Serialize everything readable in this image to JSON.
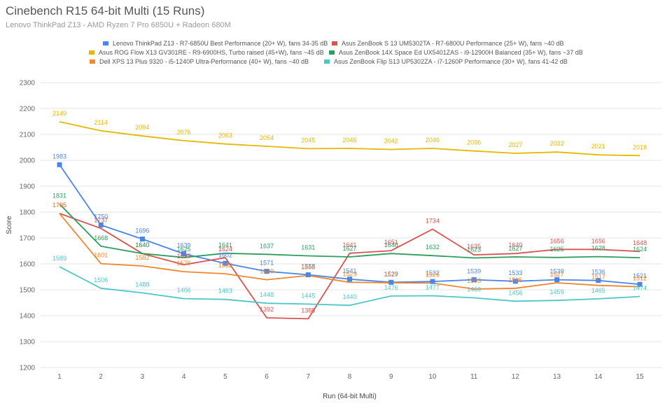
{
  "title": "Cinebench R15 64-bit Multi (15 Runs)",
  "subtitle": "Lenovo ThinkPad Z13 - AMD Ryzen 7 Pro 6850U  + Radeon 680M",
  "chart_data": {
    "type": "line",
    "title": "Cinebench R15 64-bit Multi (15 Runs)",
    "subtitle": "Lenovo ThinkPad Z13 - AMD Ryzen 7 Pro 6850U  + Radeon 680M",
    "xlabel": "Run (64-bit Multi)",
    "ylabel": "Score",
    "x": [
      1,
      2,
      3,
      4,
      5,
      6,
      7,
      8,
      9,
      10,
      11,
      12,
      13,
      14,
      15
    ],
    "ylim": [
      1200,
      2300
    ],
    "yticks": [
      1200,
      1300,
      1400,
      1500,
      1600,
      1700,
      1800,
      1900,
      2000,
      2100,
      2200,
      2300
    ],
    "grid": true,
    "legend_position": "top",
    "series": [
      {
        "name": "Lenovo ThinkPad Z13 - R7-6850U Best Performance (20+ W), fans 34-35 dB",
        "color": "#4a86e8",
        "marker": "square",
        "values": [
          1983,
          1750,
          1696,
          1639,
          1602,
          1571,
          1558,
          1541,
          1529,
          1532,
          1539,
          1533,
          1539,
          1536,
          1521
        ]
      },
      {
        "name": "Asus ZenBook S 13 UM5302TA - R7-6800U Performance (25+ W), fans ~40 dB",
        "color": "#d9534f",
        "marker": "none",
        "values": [
          1795,
          1737,
          1640,
          1597,
          1624,
          1392,
          1388,
          1641,
          1651,
          1734,
          1635,
          1640,
          1656,
          1656,
          1648
        ]
      },
      {
        "name": "Asus ROG Flow X13 GV301RE - R9-6900HS, Turbo raised (45+W), fans ~45 dB",
        "color": "#e6b800",
        "marker": "none",
        "values": [
          2149,
          2114,
          2094,
          2076,
          2063,
          2054,
          2045,
          2046,
          2042,
          2046,
          2036,
          2027,
          2032,
          2021,
          2018
        ]
      },
      {
        "name": "Asus ZenBook 14X Space Ed UX5401ZAS - i9-12900H Balanced (35+ W), fans ~37 dB",
        "color": "#2e9e5e",
        "marker": "none",
        "values": [
          1831,
          1668,
          1640,
          1625,
          1641,
          1637,
          1631,
          1627,
          1640,
          1632,
          1623,
          1627,
          1625,
          1628,
          1624
        ]
      },
      {
        "name": "Dell XPS 13 Plus 9320 - i5-1240P Ultra-Performance (40+ W), fans ~40 dB",
        "color": "#f0862e",
        "marker": "none",
        "values": [
          1795,
          1601,
          1592,
          1570,
          1562,
          1539,
          1555,
          1529,
          1527,
          1526,
          1503,
          1506,
          1527,
          1517,
          1512
        ]
      },
      {
        "name": "Asus ZenBook Flip S13 UP5302ZA - i7-1260P Performance (30+ W), fans 41-42 dB",
        "color": "#4ec7c7",
        "marker": "none",
        "values": [
          1589,
          1506,
          1488,
          1466,
          1463,
          1448,
          1445,
          1440,
          1476,
          1477,
          1469,
          1456,
          1459,
          1465,
          1474
        ]
      }
    ]
  }
}
